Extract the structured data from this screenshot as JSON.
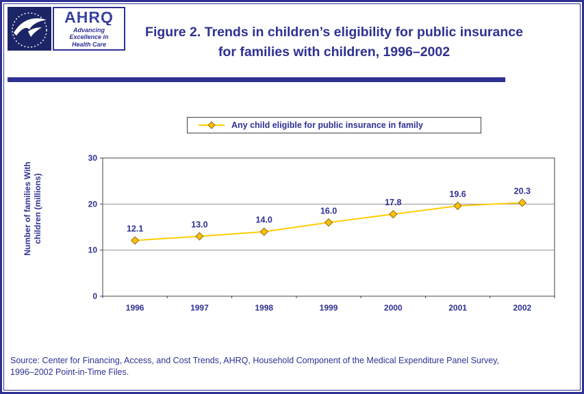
{
  "page": {
    "border_color": "#2e3192"
  },
  "header": {
    "hhs": {
      "alt": "HHS seal"
    },
    "ahrq": {
      "acronym": "AHRQ",
      "tagline": "Advancing\nExcellence in\nHealth Care"
    },
    "title": "Figure 2. Trends in children’s eligibility for public insurance for families with children, 1996–2002"
  },
  "chart_data": {
    "type": "line",
    "title": "Figure 2. Trends in children’s eligibility for public insurance for families with children, 1996–2002",
    "legend_label": "Any child eligible for public insurance in family",
    "legend_position": "top-center",
    "categories": [
      "1996",
      "1997",
      "1998",
      "1999",
      "2000",
      "2001",
      "2002"
    ],
    "series": [
      {
        "name": "Any child eligible for public insurance in family",
        "values": [
          12.1,
          13.0,
          14.0,
          16.0,
          17.8,
          19.6,
          20.3
        ]
      }
    ],
    "xlabel": "",
    "ylabel": "Number of families With\nchildren (millions)",
    "ylim": [
      0,
      30
    ],
    "yticks": [
      0,
      10,
      20,
      30
    ],
    "grid": true,
    "line_color": "#FFCC00",
    "marker": "diamond",
    "marker_fill": "#FFC000",
    "marker_stroke": "#8c6d1f"
  },
  "footer": {
    "source": "Source: Center for Financing, Access, and Cost Trends, AHRQ, Household Component of the Medical Expenditure Panel Survey,\n1996–2002 Point-in-Time Files."
  }
}
